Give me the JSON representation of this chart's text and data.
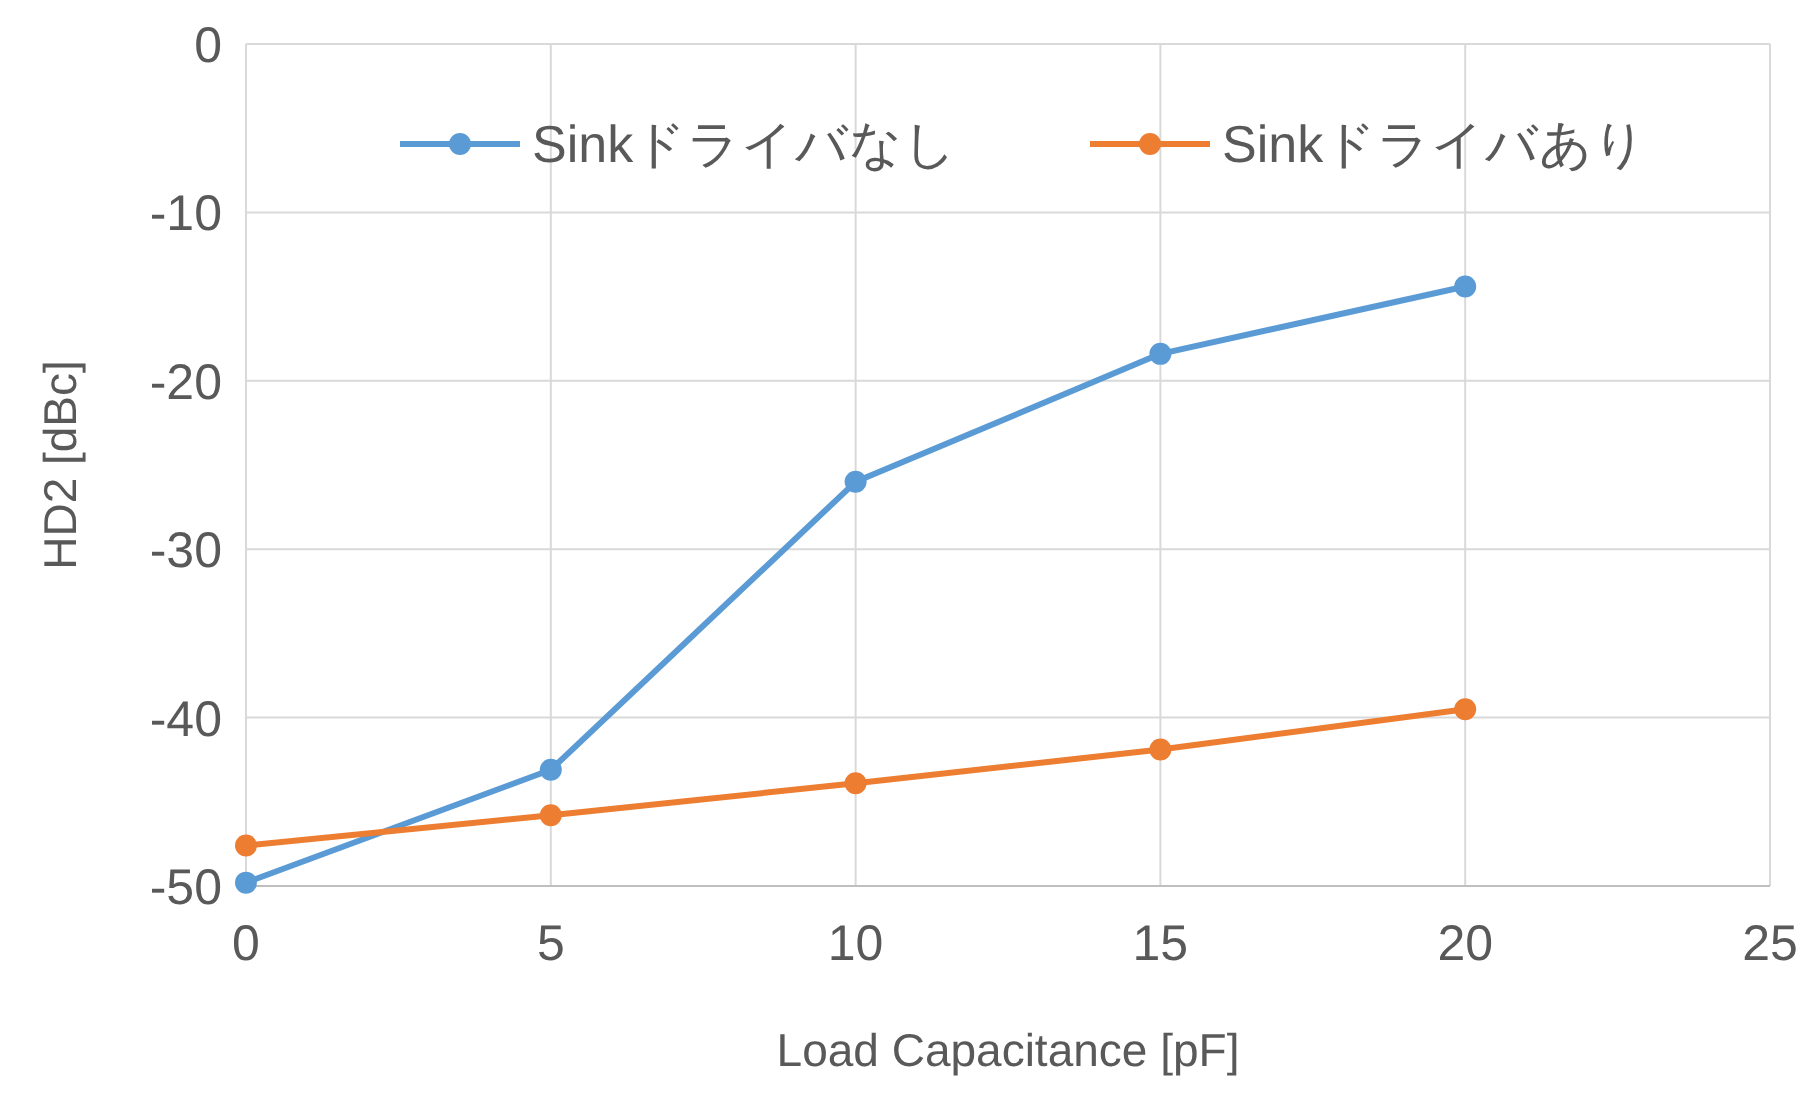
{
  "chart_data": {
    "type": "line",
    "xlabel": "Load Capacitance [pF]",
    "ylabel": "HD2 [dBc]",
    "x": [
      0,
      5,
      10,
      15,
      20
    ],
    "series": [
      {
        "name": "Sinkドライバなし",
        "color": "#5b9bd5",
        "values": [
          -49.8,
          -43.1,
          -26.0,
          -18.4,
          -14.4
        ]
      },
      {
        "name": "Sinkドライバあり",
        "color": "#ed7d31",
        "values": [
          -47.6,
          -45.8,
          -43.9,
          -41.9,
          -39.5
        ]
      }
    ],
    "xlim": [
      0,
      25
    ],
    "xticks": [
      0,
      5,
      10,
      15,
      20,
      25
    ],
    "ylim": [
      -50,
      0
    ],
    "yticks": [
      -50,
      -40,
      -30,
      -20,
      -10,
      0
    ],
    "grid": true,
    "legend": "top",
    "marker": "circle",
    "line_style": "solid"
  }
}
